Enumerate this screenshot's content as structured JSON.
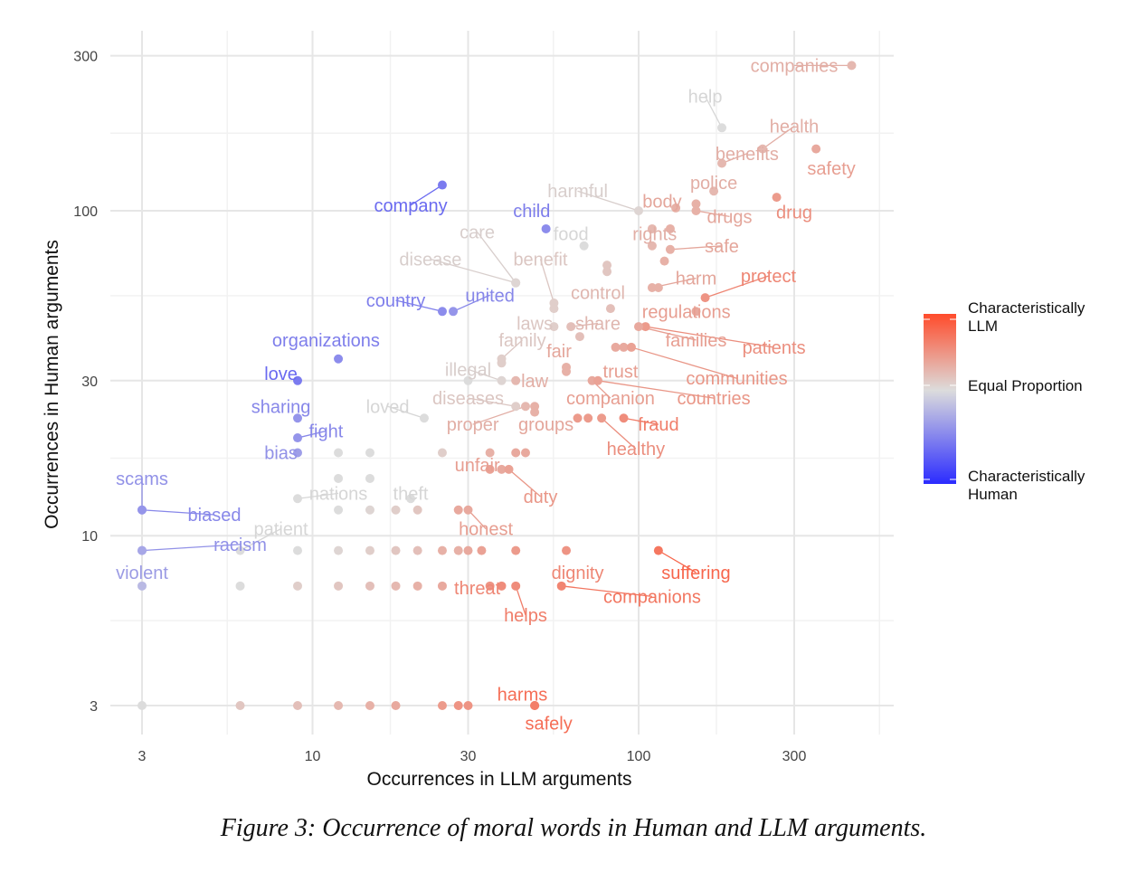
{
  "chart_data": {
    "type": "scatter",
    "xlabel": "Occurrences in LLM arguments",
    "ylabel": "Occurrences in Human arguments",
    "xscale": "log10",
    "yscale": "log10",
    "xlim": [
      2.4,
      560
    ],
    "ylim": [
      2.45,
      330
    ],
    "xticks": [
      {
        "value": 3,
        "label": "3"
      },
      {
        "value": 10,
        "label": "10"
      },
      {
        "value": 30,
        "label": "30"
      },
      {
        "value": 100,
        "label": "100"
      },
      {
        "value": 300,
        "label": "300"
      }
    ],
    "yticks": [
      {
        "value": 3,
        "label": "3"
      },
      {
        "value": 10,
        "label": "10"
      },
      {
        "value": 30,
        "label": "30"
      },
      {
        "value": 100,
        "label": "100"
      },
      {
        "value": 300,
        "label": "300"
      }
    ],
    "legend": {
      "position": "right",
      "top_label": "Characteristically LLM",
      "mid_label": "Equal Proportion",
      "bottom_label": "Characteristically Human",
      "colors": {
        "llm": "#ff4b2b",
        "equal": "#dcdcdc",
        "human": "#2b2bff"
      }
    },
    "labeled_points": [
      {
        "word": "companies",
        "x": 450,
        "y": 280,
        "lx": 300,
        "ly": 280,
        "score": 0.25
      },
      {
        "word": "help",
        "x": 180,
        "y": 180,
        "lx": 160,
        "ly": 225,
        "score": 0.0
      },
      {
        "word": "health",
        "x": 240,
        "y": 155,
        "lx": 300,
        "ly": 182,
        "score": 0.25
      },
      {
        "word": "safety",
        "x": 350,
        "y": 155,
        "lx": 390,
        "ly": 135,
        "score": 0.35
      },
      {
        "word": "benefits",
        "x": 180,
        "y": 140,
        "lx": 215,
        "ly": 150,
        "score": 0.25
      },
      {
        "word": "police",
        "x": 170,
        "y": 115,
        "lx": 170,
        "ly": 122,
        "score": 0.25
      },
      {
        "word": "drug",
        "x": 265,
        "y": 110,
        "lx": 300,
        "ly": 99,
        "score": 0.45
      },
      {
        "word": "harmful",
        "x": 100,
        "y": 100,
        "lx": 65,
        "ly": 115,
        "score": 0.05
      },
      {
        "word": "body",
        "x": 130,
        "y": 102,
        "lx": 118,
        "ly": 107,
        "score": 0.3
      },
      {
        "word": "drugs",
        "x": 150,
        "y": 100,
        "lx": 190,
        "ly": 96,
        "score": 0.3
      },
      {
        "word": "company",
        "x": 25,
        "y": 120,
        "lx": 20,
        "ly": 104,
        "score": -0.55
      },
      {
        "word": "child",
        "x": 52,
        "y": 88,
        "lx": 47,
        "ly": 100,
        "score": -0.45
      },
      {
        "word": "food",
        "x": 68,
        "y": 78,
        "lx": 62,
        "ly": 85,
        "score": 0.0
      },
      {
        "word": "rights",
        "x": 110,
        "y": 88,
        "lx": 112,
        "ly": 85,
        "score": 0.25
      },
      {
        "word": "safe",
        "x": 125,
        "y": 76,
        "lx": 180,
        "ly": 78,
        "score": 0.3
      },
      {
        "word": "care",
        "x": 42,
        "y": 60,
        "lx": 32,
        "ly": 86,
        "score": 0.05
      },
      {
        "word": "disease",
        "x": 42,
        "y": 60,
        "lx": 23,
        "ly": 71,
        "score": 0.05
      },
      {
        "word": "benefit",
        "x": 55,
        "y": 52,
        "lx": 50,
        "ly": 71,
        "score": 0.1
      },
      {
        "word": "harm",
        "x": 110,
        "y": 58,
        "lx": 150,
        "ly": 62,
        "score": 0.3
      },
      {
        "word": "protect",
        "x": 160,
        "y": 54,
        "lx": 250,
        "ly": 63,
        "score": 0.5
      },
      {
        "word": "control",
        "x": 82,
        "y": 50,
        "lx": 75,
        "ly": 56,
        "score": 0.2
      },
      {
        "word": "country",
        "x": 25,
        "y": 49,
        "lx": 18,
        "ly": 53,
        "score": -0.45
      },
      {
        "word": "united",
        "x": 27,
        "y": 49,
        "lx": 35,
        "ly": 55,
        "score": -0.4
      },
      {
        "word": "regulations",
        "x": 150,
        "y": 49,
        "lx": 140,
        "ly": 49,
        "score": 0.35
      },
      {
        "word": "laws",
        "x": 55,
        "y": 44,
        "lx": 48,
        "ly": 45,
        "score": 0.1
      },
      {
        "word": "share",
        "x": 62,
        "y": 44,
        "lx": 75,
        "ly": 45,
        "score": 0.2
      },
      {
        "word": "patients",
        "x": 105,
        "y": 44,
        "lx": 260,
        "ly": 38,
        "score": 0.45
      },
      {
        "word": "families",
        "x": 100,
        "y": 44,
        "lx": 150,
        "ly": 40,
        "score": 0.35
      },
      {
        "word": "organizations",
        "x": 12,
        "y": 35,
        "lx": 11,
        "ly": 40,
        "score": -0.45
      },
      {
        "word": "family",
        "x": 38,
        "y": 35,
        "lx": 44,
        "ly": 40,
        "score": 0.1
      },
      {
        "word": "fair",
        "x": 60,
        "y": 33,
        "lx": 57,
        "ly": 37,
        "score": 0.3
      },
      {
        "word": "trust",
        "x": 85,
        "y": 38,
        "lx": 88,
        "ly": 32,
        "score": 0.35
      },
      {
        "word": "communities",
        "x": 95,
        "y": 38,
        "lx": 200,
        "ly": 30.5,
        "score": 0.4
      },
      {
        "word": "love",
        "x": 9,
        "y": 30,
        "lx": 8,
        "ly": 31.5,
        "score": -0.55
      },
      {
        "word": "illegal",
        "x": 38,
        "y": 30,
        "lx": 30,
        "ly": 32.5,
        "score": 0.05
      },
      {
        "word": "law",
        "x": 42,
        "y": 30,
        "lx": 48,
        "ly": 30,
        "score": 0.25
      },
      {
        "word": "companion",
        "x": 72,
        "y": 30,
        "lx": 82,
        "ly": 26.5,
        "score": 0.35
      },
      {
        "word": "countries",
        "x": 75,
        "y": 30,
        "lx": 170,
        "ly": 26.5,
        "score": 0.4
      },
      {
        "word": "diseases",
        "x": 42,
        "y": 25,
        "lx": 30,
        "ly": 26.5,
        "score": 0.1
      },
      {
        "word": "sharing",
        "x": 9,
        "y": 23,
        "lx": 8,
        "ly": 25,
        "score": -0.4
      },
      {
        "word": "loved",
        "x": 22,
        "y": 23,
        "lx": 17,
        "ly": 25,
        "score": 0.0
      },
      {
        "word": "proper",
        "x": 45,
        "y": 25,
        "lx": 31,
        "ly": 22,
        "score": 0.25
      },
      {
        "word": "groups",
        "x": 48,
        "y": 24,
        "lx": 52,
        "ly": 22,
        "score": 0.3
      },
      {
        "word": "fraud",
        "x": 90,
        "y": 23,
        "lx": 115,
        "ly": 22,
        "score": 0.55
      },
      {
        "word": "fight",
        "x": 9,
        "y": 20,
        "lx": 11,
        "ly": 21,
        "score": -0.4
      },
      {
        "word": "healthy",
        "x": 77,
        "y": 23,
        "lx": 98,
        "ly": 18.5,
        "score": 0.45
      },
      {
        "word": "bias",
        "x": 9,
        "y": 18,
        "lx": 8,
        "ly": 18,
        "score": -0.35
      },
      {
        "word": "unfair",
        "x": 38,
        "y": 16,
        "lx": 32,
        "ly": 16.5,
        "score": 0.35
      },
      {
        "word": "scams",
        "x": 3,
        "y": 12,
        "lx": 3,
        "ly": 15,
        "score": -0.35
      },
      {
        "word": "nations",
        "x": 9,
        "y": 13,
        "lx": 12,
        "ly": 13.5,
        "score": 0.0
      },
      {
        "word": "theft",
        "x": 20,
        "y": 13,
        "lx": 20,
        "ly": 13.5,
        "score": 0.0
      },
      {
        "word": "duty",
        "x": 40,
        "y": 16,
        "lx": 50,
        "ly": 13.2,
        "score": 0.4
      },
      {
        "word": "biased",
        "x": 3,
        "y": 12,
        "lx": 5,
        "ly": 11.6,
        "score": -0.4
      },
      {
        "word": "patient",
        "x": 6,
        "y": 9,
        "lx": 8,
        "ly": 10.5,
        "score": 0.0
      },
      {
        "word": "honest",
        "x": 30,
        "y": 12,
        "lx": 34,
        "ly": 10.5,
        "score": 0.35
      },
      {
        "word": "racism",
        "x": 3,
        "y": 9,
        "lx": 6,
        "ly": 9.4,
        "score": -0.35
      },
      {
        "word": "violent",
        "x": 3,
        "y": 9,
        "lx": 3,
        "ly": 7.7,
        "score": -0.3
      },
      {
        "word": "dignity",
        "x": 60,
        "y": 9,
        "lx": 65,
        "ly": 7.7,
        "score": 0.5
      },
      {
        "word": "suffering",
        "x": 115,
        "y": 9,
        "lx": 150,
        "ly": 7.7,
        "score": 0.7
      },
      {
        "word": "threat",
        "x": 35,
        "y": 7,
        "lx": 32,
        "ly": 6.9,
        "score": 0.5
      },
      {
        "word": "companions",
        "x": 58,
        "y": 7,
        "lx": 110,
        "ly": 6.5,
        "score": 0.6
      },
      {
        "word": "helps",
        "x": 42,
        "y": 7,
        "lx": 45,
        "ly": 5.7,
        "score": 0.55
      },
      {
        "word": "harms",
        "x": 48,
        "y": 3,
        "lx": 44,
        "ly": 3.25,
        "score": 0.65
      },
      {
        "word": "safely",
        "x": 48,
        "y": 3,
        "lx": 53,
        "ly": 2.65,
        "score": 0.65
      }
    ],
    "unlabeled_points": [
      {
        "x": 150,
        "y": 105,
        "score": 0.3
      },
      {
        "x": 125,
        "y": 88,
        "score": 0.3
      },
      {
        "x": 110,
        "y": 78,
        "score": 0.25
      },
      {
        "x": 120,
        "y": 70,
        "score": 0.3
      },
      {
        "x": 80,
        "y": 68,
        "score": 0.15
      },
      {
        "x": 80,
        "y": 65,
        "score": 0.15
      },
      {
        "x": 115,
        "y": 58,
        "score": 0.3
      },
      {
        "x": 55,
        "y": 50,
        "score": 0.1
      },
      {
        "x": 66,
        "y": 41,
        "score": 0.2
      },
      {
        "x": 90,
        "y": 38,
        "score": 0.35
      },
      {
        "x": 38,
        "y": 34,
        "score": 0.1
      },
      {
        "x": 30,
        "y": 30,
        "score": 0.0
      },
      {
        "x": 60,
        "y": 32,
        "score": 0.3
      },
      {
        "x": 48,
        "y": 25,
        "score": 0.3
      },
      {
        "x": 65,
        "y": 23,
        "score": 0.45
      },
      {
        "x": 70,
        "y": 23,
        "score": 0.45
      },
      {
        "x": 25,
        "y": 18,
        "score": 0.1
      },
      {
        "x": 12,
        "y": 18,
        "score": 0.0
      },
      {
        "x": 15,
        "y": 18,
        "score": 0.0
      },
      {
        "x": 35,
        "y": 18,
        "score": 0.3
      },
      {
        "x": 42,
        "y": 18,
        "score": 0.35
      },
      {
        "x": 45,
        "y": 18,
        "score": 0.35
      },
      {
        "x": 12,
        "y": 15,
        "score": 0.0
      },
      {
        "x": 15,
        "y": 15,
        "score": 0.0
      },
      {
        "x": 35,
        "y": 16,
        "score": 0.4
      },
      {
        "x": 12,
        "y": 12,
        "score": 0.0
      },
      {
        "x": 15,
        "y": 12,
        "score": 0.05
      },
      {
        "x": 18,
        "y": 12,
        "score": 0.1
      },
      {
        "x": 21,
        "y": 12,
        "score": 0.15
      },
      {
        "x": 28,
        "y": 12,
        "score": 0.35
      },
      {
        "x": 9,
        "y": 9,
        "score": 0.0
      },
      {
        "x": 12,
        "y": 9,
        "score": 0.05
      },
      {
        "x": 15,
        "y": 9,
        "score": 0.1
      },
      {
        "x": 18,
        "y": 9,
        "score": 0.15
      },
      {
        "x": 21,
        "y": 9,
        "score": 0.2
      },
      {
        "x": 25,
        "y": 9,
        "score": 0.3
      },
      {
        "x": 28,
        "y": 9,
        "score": 0.3
      },
      {
        "x": 30,
        "y": 9,
        "score": 0.35
      },
      {
        "x": 33,
        "y": 9,
        "score": 0.4
      },
      {
        "x": 42,
        "y": 9,
        "score": 0.45
      },
      {
        "x": 3,
        "y": 7,
        "score": -0.2
      },
      {
        "x": 6,
        "y": 7,
        "score": 0.0
      },
      {
        "x": 9,
        "y": 7,
        "score": 0.1
      },
      {
        "x": 12,
        "y": 7,
        "score": 0.15
      },
      {
        "x": 15,
        "y": 7,
        "score": 0.2
      },
      {
        "x": 18,
        "y": 7,
        "score": 0.25
      },
      {
        "x": 21,
        "y": 7,
        "score": 0.3
      },
      {
        "x": 25,
        "y": 7,
        "score": 0.35
      },
      {
        "x": 38,
        "y": 7,
        "score": 0.55
      },
      {
        "x": 3,
        "y": 3,
        "score": 0.0
      },
      {
        "x": 6,
        "y": 3,
        "score": 0.15
      },
      {
        "x": 9,
        "y": 3,
        "score": 0.2
      },
      {
        "x": 12,
        "y": 3,
        "score": 0.25
      },
      {
        "x": 15,
        "y": 3,
        "score": 0.3
      },
      {
        "x": 18,
        "y": 3,
        "score": 0.35
      },
      {
        "x": 25,
        "y": 3,
        "score": 0.45
      },
      {
        "x": 28,
        "y": 3,
        "score": 0.5
      },
      {
        "x": 30,
        "y": 3,
        "score": 0.5
      }
    ]
  },
  "caption": "Figure 3: Occurrence of moral words in Human and LLM arguments."
}
